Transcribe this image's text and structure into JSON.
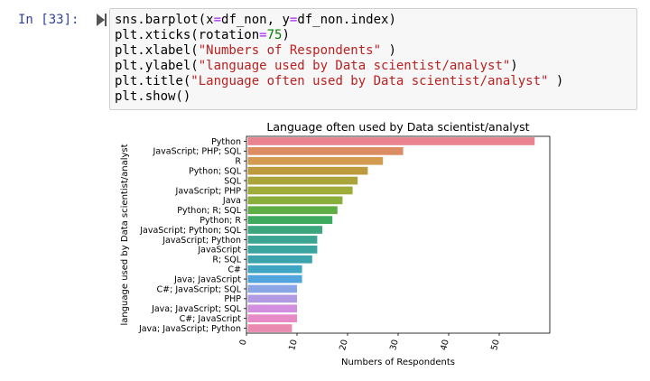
{
  "cell": {
    "prompt": "In [33]:",
    "code_lines": [
      [
        {
          "t": "sns.barplot(x"
        },
        {
          "t": "=",
          "c": "op"
        },
        {
          "t": "df_non, y"
        },
        {
          "t": "=",
          "c": "op"
        },
        {
          "t": "df_non.index)"
        }
      ],
      [
        {
          "t": "plt.xticks(rotation"
        },
        {
          "t": "=",
          "c": "op"
        },
        {
          "t": "75",
          "c": "num"
        },
        {
          "t": ")"
        }
      ],
      [
        {
          "t": "plt.xlabel("
        },
        {
          "t": "\"Numbers of Respondents\"",
          "c": "str"
        },
        {
          "t": " )"
        }
      ],
      [
        {
          "t": "plt.ylabel("
        },
        {
          "t": "\"language used by Data scientist/analyst\"",
          "c": "str"
        },
        {
          "t": ")"
        }
      ],
      [
        {
          "t": "plt.title("
        },
        {
          "t": "\"Language often used by Data scientist/analyst\"",
          "c": "str"
        },
        {
          "t": " )"
        }
      ],
      [
        {
          "t": "plt.show()"
        }
      ]
    ]
  },
  "chart_data": {
    "type": "bar",
    "orientation": "horizontal",
    "title": "Language often used by Data scientist/analyst",
    "xlabel": "Numbers of Respondents",
    "ylabel": "language used by Data scientist/analyst",
    "xlim": [
      0,
      60
    ],
    "xticks": [
      0,
      10,
      20,
      30,
      40,
      50
    ],
    "categories": [
      "Python",
      "JavaScript; PHP; SQL",
      "R",
      "Python; SQL",
      "SQL",
      "JavaScript; PHP",
      "Java",
      "Python; R; SQL",
      "Python; R",
      "JavaScript; Python; SQL",
      "JavaScript; Python",
      "JavaScript",
      "R; SQL",
      "C#",
      "Java; JavaScript",
      "C#; JavaScript; SQL",
      "PHP",
      "Java; JavaScript; SQL",
      "C#; JavaScript",
      "Java; JavaScript; Python"
    ],
    "values": [
      57,
      31,
      27,
      24,
      22,
      21,
      19,
      18,
      17,
      15,
      14,
      14,
      13,
      11,
      11,
      10,
      10,
      10,
      10,
      9
    ],
    "colors": [
      "#e8838f",
      "#dc8c63",
      "#d39b50",
      "#bd9a3d",
      "#aba43a",
      "#9fac3a",
      "#8aae3b",
      "#5fae45",
      "#3eaa5e",
      "#3ca77e",
      "#3ba592",
      "#3aa49e",
      "#3ba3ac",
      "#3ea6c3",
      "#52a5dc",
      "#8aa6e6",
      "#b29ae3",
      "#d38fdf",
      "#e68bc8",
      "#eb8ab0"
    ]
  }
}
